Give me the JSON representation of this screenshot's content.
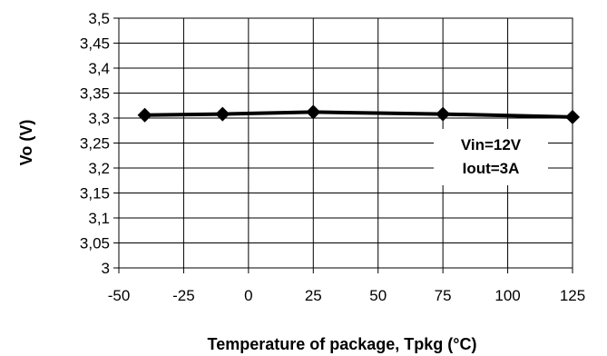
{
  "chart_data": {
    "type": "line",
    "title": "",
    "xlabel": "Temperature of package, Tpkg (°C)",
    "ylabel": "Vo (V)",
    "xlim": [
      -50,
      125
    ],
    "ylim": [
      3,
      3.5
    ],
    "x_ticks": [
      -50,
      -25,
      0,
      25,
      50,
      75,
      100,
      125
    ],
    "x_tick_labels": [
      "-50",
      "-25",
      "0",
      "25",
      "50",
      "75",
      "100",
      "125"
    ],
    "y_ticks": [
      3,
      3.05,
      3.1,
      3.15,
      3.2,
      3.25,
      3.3,
      3.35,
      3.4,
      3.45,
      3.5
    ],
    "y_tick_labels": [
      "3",
      "3,05",
      "3,1",
      "3,15",
      "3,2",
      "3,25",
      "3,3",
      "3,35",
      "3,4",
      "3,45",
      "3,5"
    ],
    "grid": true,
    "legend": "none",
    "series": [
      {
        "x": [
          -40,
          -10,
          25,
          75,
          125
        ],
        "y": [
          3.306,
          3.308,
          3.312,
          3.308,
          3.302
        ],
        "color": "#000000",
        "marker": "diamond"
      }
    ],
    "annotations": [
      "Vin=12V",
      "Iout=3A"
    ]
  }
}
